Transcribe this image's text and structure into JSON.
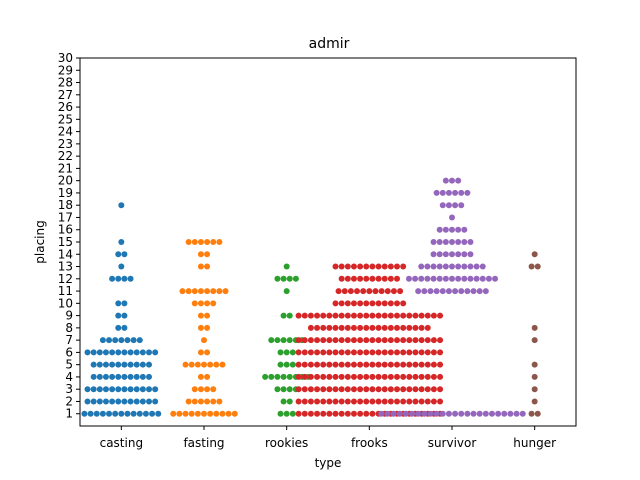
{
  "chart_data": {
    "type": "scatter",
    "title": "admir",
    "xlabel": "type",
    "ylabel": "placing",
    "ylim": [
      0,
      30
    ],
    "y_ticks": [
      1,
      2,
      3,
      4,
      5,
      6,
      7,
      8,
      9,
      10,
      11,
      12,
      13,
      14,
      15,
      16,
      17,
      18,
      19,
      20,
      21,
      22,
      23,
      24,
      25,
      26,
      27,
      28,
      29,
      30
    ],
    "grid": false,
    "categories": [
      "casting",
      "fasting",
      "rookies",
      "frooks",
      "survivor",
      "hunger"
    ],
    "series": [
      {
        "color": "#1f77b4",
        "counts": {
          "1": 13,
          "2": 12,
          "3": 12,
          "4": 10,
          "5": 10,
          "6": 12,
          "7": 7,
          "8": 2,
          "9": 2,
          "10": 2,
          "12": 4,
          "13": 1,
          "14": 2,
          "15": 1,
          "18": 1
        }
      },
      {
        "color": "#ff7f0e",
        "counts": {
          "1": 11,
          "2": 6,
          "3": 4,
          "4": 2,
          "5": 7,
          "6": 2,
          "7": 1,
          "8": 2,
          "9": 2,
          "10": 4,
          "11": 8,
          "13": 2,
          "14": 2,
          "15": 6
        }
      },
      {
        "color": "#2ca02c",
        "counts": {
          "1": 3,
          "2": 2,
          "3": 4,
          "4": 8,
          "5": 3,
          "6": 3,
          "7": 6,
          "9": 2,
          "11": 1,
          "12": 4,
          "13": 1
        }
      },
      {
        "color": "#d62728",
        "counts": {
          "1": 24,
          "2": 24,
          "3": 24,
          "4": 24,
          "5": 24,
          "6": 24,
          "7": 24,
          "8": 20,
          "9": 24,
          "10": 12,
          "11": 11,
          "12": 10,
          "13": 12
        }
      },
      {
        "color": "#9467bd",
        "counts": {
          "1": 24,
          "11": 12,
          "12": 15,
          "13": 11,
          "14": 7,
          "15": 7,
          "16": 5,
          "17": 1,
          "18": 4,
          "19": 6,
          "20": 3
        }
      },
      {
        "color": "#8c564b",
        "counts": {
          "1": 2,
          "2": 1,
          "3": 1,
          "4": 1,
          "5": 1,
          "7": 1,
          "8": 1,
          "13": 2,
          "14": 1
        }
      }
    ]
  }
}
